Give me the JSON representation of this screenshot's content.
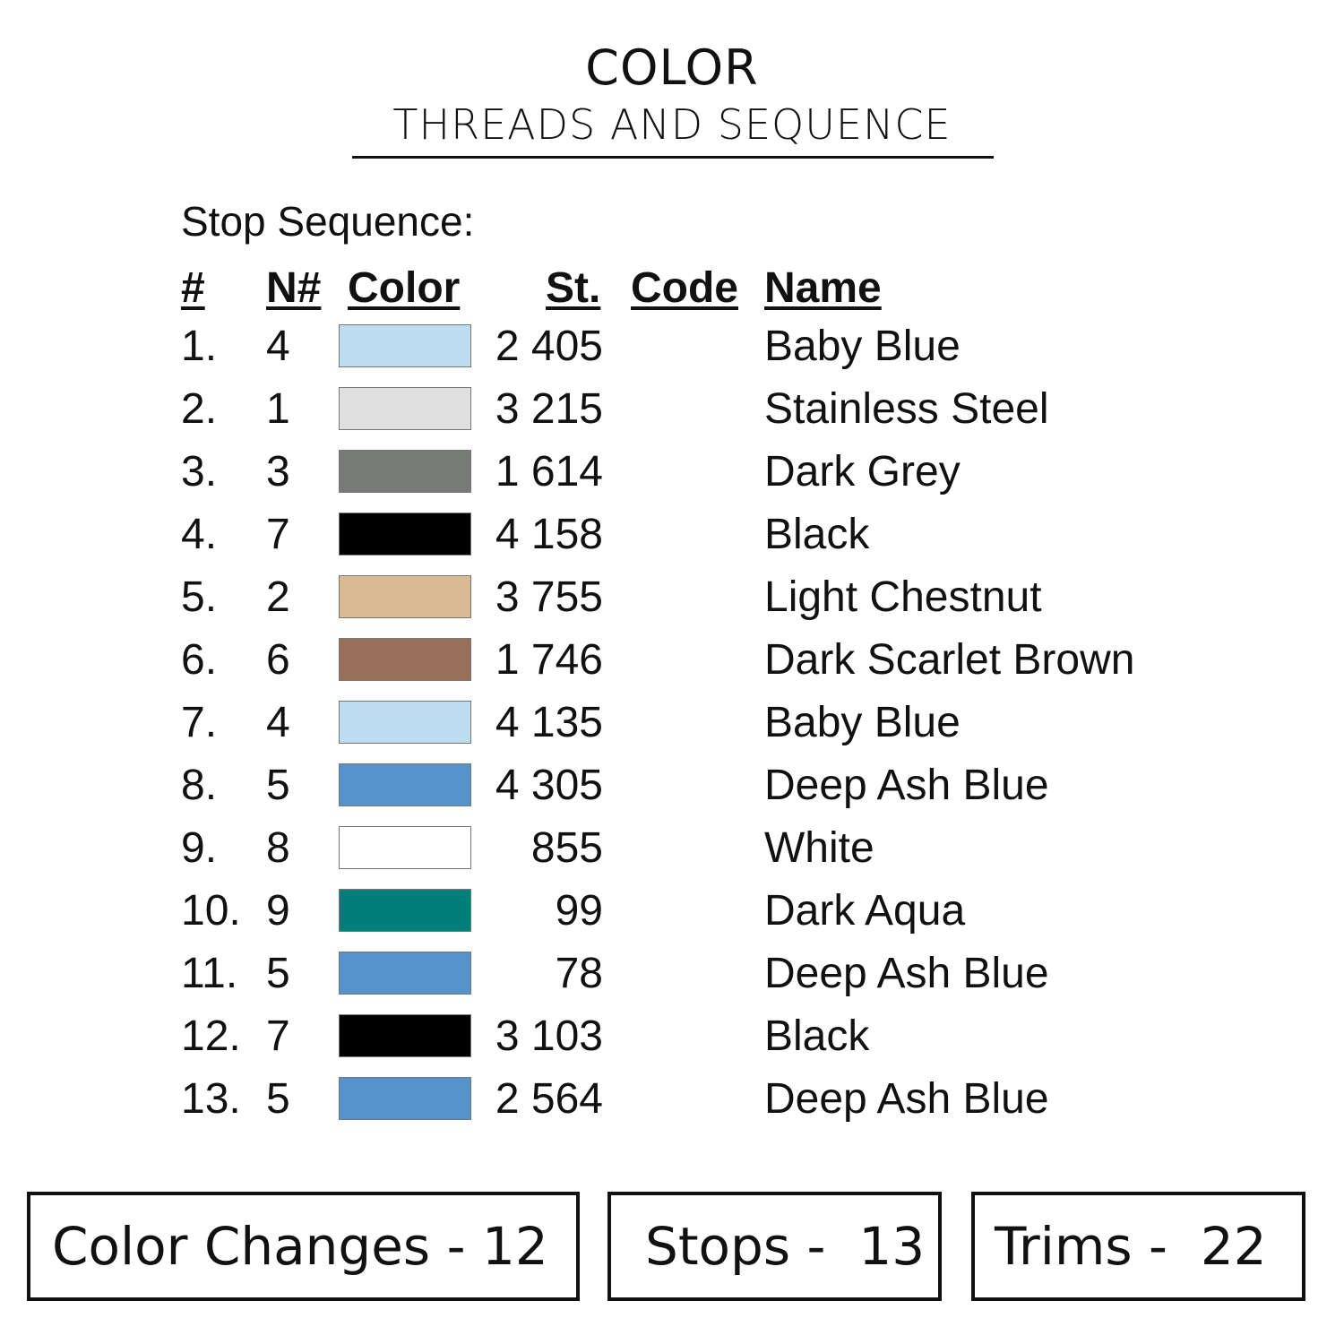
{
  "header": {
    "title": "COLOR",
    "subtitle": "THREADS AND SEQUENCE"
  },
  "section_label": "Stop Sequence:",
  "columns": {
    "num": "#",
    "needle": "N#",
    "color": "Color",
    "stitches": "St.",
    "code": "Code",
    "name": "Name"
  },
  "rows": [
    {
      "num": "1.",
      "needle": "4",
      "color": "#bcdcef",
      "stitches": "2 405",
      "name": "Baby Blue"
    },
    {
      "num": "2.",
      "needle": "1",
      "color": "#e0e0e0",
      "stitches": "3 215",
      "name": "Stainless Steel"
    },
    {
      "num": "3.",
      "needle": "3",
      "color": "#777a77",
      "stitches": "1 614",
      "name": "Dark Grey"
    },
    {
      "num": "4.",
      "needle": "7",
      "color": "#000000",
      "stitches": "4 158",
      "name": "Black"
    },
    {
      "num": "5.",
      "needle": "2",
      "color": "#dcbb94",
      "stitches": "3 755",
      "name": "Light Chestnut"
    },
    {
      "num": "6.",
      "needle": "6",
      "color": "#98705a",
      "stitches": "1 746",
      "name": "Dark Scarlet Brown"
    },
    {
      "num": "7.",
      "needle": "4",
      "color": "#bcdcef",
      "stitches": "4 135",
      "name": "Baby Blue"
    },
    {
      "num": "8.",
      "needle": "5",
      "color": "#5591cb",
      "stitches": "4 305",
      "name": "Deep Ash Blue"
    },
    {
      "num": "9.",
      "needle": "8",
      "color": "#ffffff",
      "stitches": "855",
      "name": "White"
    },
    {
      "num": "10.",
      "needle": "9",
      "color": "#007f7a",
      "stitches": "99",
      "name": "Dark Aqua"
    },
    {
      "num": "11.",
      "needle": "5",
      "color": "#5591cb",
      "stitches": "78",
      "name": "Deep Ash Blue"
    },
    {
      "num": "12.",
      "needle": "7",
      "color": "#000000",
      "stitches": "3 103",
      "name": "Black"
    },
    {
      "num": "13.",
      "needle": "5",
      "color": "#5591cb",
      "stitches": "2 564",
      "name": "Deep Ash Blue"
    }
  ],
  "summary": {
    "color_changes": "Color Changes - 12",
    "stops": "Stops -  13",
    "trims": "Trims -  22"
  }
}
